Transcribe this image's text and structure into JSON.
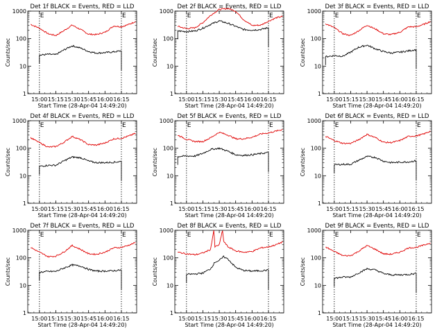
{
  "figure": {
    "ylabel": "Counts/sec",
    "xlabel": "Start Time (28-Apr-04 14:49:20)",
    "legend_text": "BLACK = Events, RED = LLD",
    "marker_text": "E",
    "colors": {
      "events": "#000000",
      "lld": "#e00000",
      "axis": "#000000",
      "background": "#ffffff"
    }
  },
  "chart_data": [
    {
      "type": "line",
      "title": "Det 1f BLACK = Events, RED = LLD",
      "xlabel": "Start Time (28-Apr-04 14:49:20)",
      "ylabel": "Counts/sec",
      "yscale": "log",
      "ylim": [
        1,
        1000
      ],
      "yticks": [
        "1",
        "10",
        "100",
        "1000"
      ],
      "xticks": [
        "15:00",
        "15:15",
        "15:30",
        "15:45",
        "16:00",
        "16:15"
      ],
      "grid": false,
      "events": {
        "start": "15:00",
        "end": "16:15"
      },
      "series": [
        {
          "name": "LLD",
          "color": "#e00000",
          "x": [
            "14:52",
            "15:00",
            "15:08",
            "15:15",
            "15:22",
            "15:30",
            "15:38",
            "15:45",
            "15:52",
            "16:00",
            "16:08",
            "16:15",
            "16:22",
            "16:28"
          ],
          "y": [
            330,
            240,
            150,
            130,
            190,
            310,
            210,
            145,
            140,
            170,
            290,
            270,
            330,
            420
          ]
        },
        {
          "name": "Events",
          "color": "#000000",
          "x": [
            "15:00",
            "15:08",
            "15:15",
            "15:22",
            "15:30",
            "15:38",
            "15:45",
            "15:52",
            "16:00",
            "16:08",
            "16:15"
          ],
          "y": [
            25,
            27,
            26,
            38,
            55,
            45,
            34,
            30,
            31,
            33,
            36
          ]
        }
      ]
    },
    {
      "type": "line",
      "title": "Det 2f BLACK = Events, RED = LLD",
      "xlabel": "Start Time (28-Apr-04 14:49:20)",
      "ylabel": "Counts/sec",
      "yscale": "log",
      "ylim": [
        1,
        1000
      ],
      "yticks": [
        "1",
        "10",
        "100",
        "1000"
      ],
      "xticks": [
        "15:00",
        "15:15",
        "15:30",
        "15:45",
        "16:00",
        "16:15"
      ],
      "grid": false,
      "events": {
        "start": "15:00",
        "end": "16:15"
      },
      "series": [
        {
          "name": "LLD",
          "color": "#e00000",
          "x": [
            "14:52",
            "15:00",
            "15:08",
            "15:15",
            "15:22",
            "15:30",
            "15:38",
            "15:45",
            "15:52",
            "16:00",
            "16:08",
            "16:15",
            "16:22",
            "16:28"
          ],
          "y": [
            280,
            230,
            250,
            380,
            700,
            1150,
            1250,
            1000,
            500,
            300,
            310,
            430,
            570,
            640
          ]
        },
        {
          "name": "Events",
          "color": "#000000",
          "x": [
            "14:52",
            "15:00",
            "15:08",
            "15:15",
            "15:22",
            "15:30",
            "15:38",
            "15:45",
            "15:52",
            "16:00",
            "16:08",
            "16:15"
          ],
          "y": [
            190,
            180,
            190,
            240,
            330,
            440,
            360,
            280,
            215,
            205,
            215,
            250
          ]
        }
      ]
    },
    {
      "type": "line",
      "title": "Det 3f BLACK = Events, RED = LLD",
      "xlabel": "Start Time (28-Apr-04 14:49:20)",
      "ylabel": "Counts/sec",
      "yscale": "log",
      "ylim": [
        1,
        1000
      ],
      "yticks": [
        "1",
        "10",
        "100",
        "1000"
      ],
      "xticks": [
        "15:00",
        "15:15",
        "15:30",
        "15:45",
        "16:00",
        "16:15"
      ],
      "grid": false,
      "events": {
        "start": "15:00",
        "end": "16:15"
      },
      "series": [
        {
          "name": "LLD",
          "color": "#e00000",
          "x": [
            "14:52",
            "15:00",
            "15:08",
            "15:15",
            "15:22",
            "15:30",
            "15:38",
            "15:45",
            "15:52",
            "16:00",
            "16:08",
            "16:15",
            "16:22",
            "16:28"
          ],
          "y": [
            350,
            250,
            150,
            130,
            190,
            310,
            220,
            150,
            140,
            170,
            270,
            270,
            330,
            420
          ]
        },
        {
          "name": "Events",
          "color": "#000000",
          "x": [
            "14:52",
            "15:00",
            "15:08",
            "15:15",
            "15:22",
            "15:30",
            "15:38",
            "15:45",
            "15:52",
            "16:00",
            "16:08",
            "16:15"
          ],
          "y": [
            22,
            24,
            23,
            32,
            48,
            58,
            42,
            34,
            30,
            32,
            36,
            40
          ]
        }
      ]
    },
    {
      "type": "line",
      "title": "Det 4f BLACK = Events, RED = LLD",
      "xlabel": "Start Time (28-Apr-04 14:49:20)",
      "ylabel": "Counts/sec",
      "yscale": "log",
      "ylim": [
        1,
        1000
      ],
      "yticks": [
        "1",
        "10",
        "100",
        "1000"
      ],
      "xticks": [
        "15:00",
        "15:15",
        "15:30",
        "15:45",
        "16:00",
        "16:15"
      ],
      "grid": false,
      "events": {
        "start": "15:00",
        "end": "16:15"
      },
      "series": [
        {
          "name": "LLD",
          "color": "#e00000",
          "x": [
            "14:52",
            "15:00",
            "15:08",
            "15:15",
            "15:22",
            "15:30",
            "15:38",
            "15:45",
            "15:52",
            "16:00",
            "16:08",
            "16:15",
            "16:22",
            "16:28"
          ],
          "y": [
            240,
            160,
            110,
            115,
            160,
            270,
            200,
            135,
            130,
            155,
            220,
            230,
            280,
            350
          ]
        },
        {
          "name": "Events",
          "color": "#000000",
          "x": [
            "15:00",
            "15:08",
            "15:15",
            "15:22",
            "15:30",
            "15:38",
            "15:45",
            "15:52",
            "16:00",
            "16:08",
            "16:15"
          ],
          "y": [
            22,
            24,
            24,
            34,
            48,
            45,
            34,
            30,
            30,
            31,
            33
          ]
        }
      ]
    },
    {
      "type": "line",
      "title": "Det 5f BLACK = Events, RED = LLD",
      "xlabel": "Start Time (28-Apr-04 14:49:20)",
      "ylabel": "Counts/sec",
      "yscale": "log",
      "ylim": [
        1,
        1000
      ],
      "yticks": [
        "1",
        "10",
        "100",
        "1000"
      ],
      "xticks": [
        "15:00",
        "15:15",
        "15:30",
        "15:45",
        "16:00",
        "16:15"
      ],
      "grid": false,
      "events": {
        "start": "15:00",
        "end": "16:15"
      },
      "series": [
        {
          "name": "LLD",
          "color": "#e00000",
          "x": [
            "14:52",
            "15:00",
            "15:08",
            "15:15",
            "15:22",
            "15:30",
            "15:38",
            "15:45",
            "15:52",
            "16:00",
            "16:08",
            "16:15",
            "16:22",
            "16:28"
          ],
          "y": [
            300,
            210,
            175,
            175,
            240,
            380,
            300,
            220,
            220,
            250,
            330,
            360,
            420,
            480
          ]
        },
        {
          "name": "Events",
          "color": "#000000",
          "x": [
            "14:52",
            "15:00",
            "15:08",
            "15:15",
            "15:22",
            "15:30",
            "15:38",
            "15:45",
            "15:52",
            "16:00",
            "16:08",
            "16:15"
          ],
          "y": [
            50,
            52,
            52,
            65,
            90,
            100,
            78,
            58,
            55,
            58,
            64,
            70
          ]
        }
      ]
    },
    {
      "type": "line",
      "title": "Det 6f BLACK = Events, RED = LLD",
      "xlabel": "Start Time (28-Apr-04 14:49:20)",
      "ylabel": "Counts/sec",
      "yscale": "log",
      "ylim": [
        1,
        1000
      ],
      "yticks": [
        "1",
        "10",
        "100",
        "1000"
      ],
      "xticks": [
        "15:00",
        "15:15",
        "15:30",
        "15:45",
        "16:00",
        "16:15"
      ],
      "grid": false,
      "events": {
        "start": "15:00",
        "end": "16:15"
      },
      "series": [
        {
          "name": "LLD",
          "color": "#e00000",
          "x": [
            "14:52",
            "15:00",
            "15:08",
            "15:15",
            "15:22",
            "15:30",
            "15:38",
            "15:45",
            "15:52",
            "16:00",
            "16:08",
            "16:15",
            "16:22",
            "16:28"
          ],
          "y": [
            270,
            190,
            150,
            150,
            200,
            320,
            240,
            165,
            160,
            190,
            270,
            280,
            330,
            420
          ]
        },
        {
          "name": "Events",
          "color": "#000000",
          "x": [
            "15:00",
            "15:08",
            "15:15",
            "15:22",
            "15:30",
            "15:38",
            "15:45",
            "15:52",
            "16:00",
            "16:08",
            "16:15"
          ],
          "y": [
            25,
            26,
            26,
            36,
            50,
            46,
            34,
            30,
            31,
            32,
            35
          ]
        }
      ]
    },
    {
      "type": "line",
      "title": "Det 7f BLACK = Events, RED = LLD",
      "xlabel": "Start Time (28-Apr-04 14:49:20)",
      "ylabel": "Counts/sec",
      "yscale": "log",
      "ylim": [
        1,
        1000
      ],
      "yticks": [
        "1",
        "10",
        "100",
        "1000"
      ],
      "xticks": [
        "15:00",
        "15:15",
        "15:30",
        "15:45",
        "16:00",
        "16:15"
      ],
      "grid": false,
      "events": {
        "start": "15:00",
        "end": "16:15"
      },
      "series": [
        {
          "name": "LLD",
          "color": "#e00000",
          "x": [
            "14:52",
            "15:00",
            "15:08",
            "15:15",
            "15:22",
            "15:30",
            "15:38",
            "15:45",
            "15:52",
            "16:00",
            "16:08",
            "16:15",
            "16:22",
            "16:28"
          ],
          "y": [
            240,
            160,
            110,
            115,
            160,
            280,
            200,
            140,
            135,
            160,
            230,
            240,
            290,
            360
          ]
        },
        {
          "name": "Events",
          "color": "#000000",
          "x": [
            "15:00",
            "15:08",
            "15:15",
            "15:22",
            "15:30",
            "15:38",
            "15:45",
            "15:52",
            "16:00",
            "16:08",
            "16:15"
          ],
          "y": [
            30,
            32,
            32,
            42,
            55,
            50,
            38,
            33,
            33,
            34,
            36
          ]
        }
      ]
    },
    {
      "type": "line",
      "title": "Det 8f BLACK = Events, RED = LLD",
      "xlabel": "Start Time (28-Apr-04 14:49:20)",
      "ylabel": "Counts/sec",
      "yscale": "log",
      "ylim": [
        1,
        1000
      ],
      "yticks": [
        "1",
        "10",
        "100",
        "1000"
      ],
      "xticks": [
        "15:00",
        "15:15",
        "15:30",
        "15:45",
        "16:00",
        "16:15"
      ],
      "grid": false,
      "events": {
        "start": "15:00",
        "end": "16:15"
      },
      "series": [
        {
          "name": "LLD",
          "color": "#e00000",
          "x": [
            "14:52",
            "15:00",
            "15:08",
            "15:15",
            "15:22",
            "15:25",
            "15:26",
            "15:30",
            "15:33",
            "15:34",
            "15:38",
            "15:45",
            "15:52",
            "16:00",
            "16:08",
            "16:15",
            "16:22",
            "16:28"
          ],
          "y": [
            160,
            140,
            130,
            150,
            200,
            1000,
            250,
            300,
            1000,
            400,
            250,
            180,
            160,
            170,
            230,
            250,
            300,
            380
          ]
        },
        {
          "name": "Events",
          "color": "#000000",
          "x": [
            "15:00",
            "15:08",
            "15:15",
            "15:22",
            "15:26",
            "15:30",
            "15:34",
            "15:38",
            "15:45",
            "15:52",
            "16:00",
            "16:08",
            "16:15"
          ],
          "y": [
            25,
            26,
            28,
            40,
            70,
            80,
            110,
            90,
            45,
            35,
            33,
            34,
            36
          ]
        }
      ]
    },
    {
      "type": "line",
      "title": "Det 9f BLACK = Events, RED = LLD",
      "xlabel": "Start Time (28-Apr-04 14:49:20)",
      "ylabel": "Counts/sec",
      "yscale": "log",
      "ylim": [
        1,
        1000
      ],
      "yticks": [
        "1",
        "10",
        "100",
        "1000"
      ],
      "xticks": [
        "15:00",
        "15:15",
        "15:30",
        "15:45",
        "16:00",
        "16:15"
      ],
      "grid": false,
      "events": {
        "start": "15:00",
        "end": "16:15"
      },
      "series": [
        {
          "name": "LLD",
          "color": "#e00000",
          "x": [
            "14:52",
            "15:00",
            "15:08",
            "15:15",
            "15:22",
            "15:30",
            "15:38",
            "15:45",
            "15:52",
            "16:00",
            "16:08",
            "16:15",
            "16:22",
            "16:28"
          ],
          "y": [
            250,
            170,
            120,
            120,
            170,
            280,
            200,
            140,
            135,
            160,
            230,
            240,
            290,
            350
          ]
        },
        {
          "name": "Events",
          "color": "#000000",
          "x": [
            "15:00",
            "15:08",
            "15:15",
            "15:22",
            "15:30",
            "15:38",
            "15:45",
            "15:52",
            "16:00",
            "16:08",
            "16:15"
          ],
          "y": [
            18,
            20,
            20,
            28,
            40,
            36,
            27,
            24,
            24,
            25,
            27
          ]
        }
      ]
    }
  ]
}
